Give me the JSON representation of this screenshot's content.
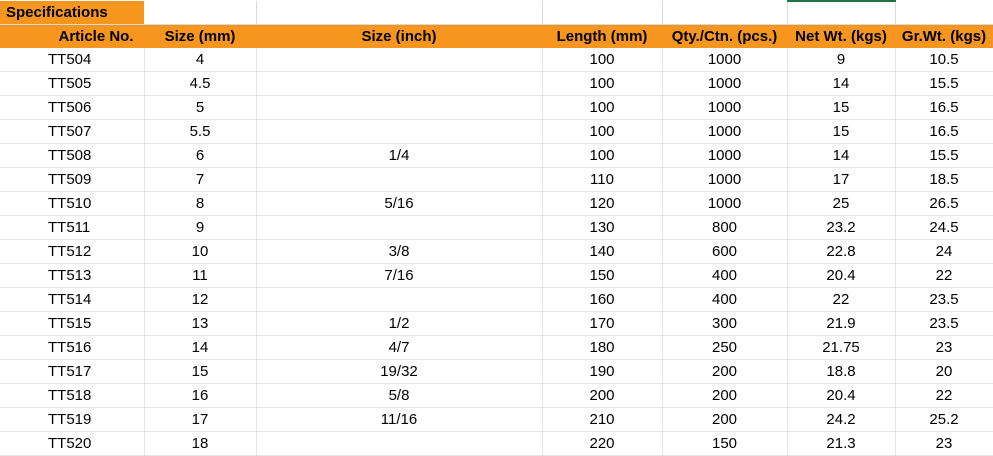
{
  "sheet": {
    "banner_label": "Specifications",
    "columns": [
      "Article No.",
      "Size (mm)",
      "Size (inch)",
      "Length (mm)",
      "Qty./Ctn. (pcs.)",
      "Net Wt. (kgs)",
      "Gr.Wt. (kgs)"
    ],
    "rows": [
      [
        "TT504",
        "4",
        "",
        "100",
        "1000",
        "9",
        "10.5"
      ],
      [
        "TT505",
        "4.5",
        "",
        "100",
        "1000",
        "14",
        "15.5"
      ],
      [
        "TT506",
        "5",
        "",
        "100",
        "1000",
        "15",
        "16.5"
      ],
      [
        "TT507",
        "5.5",
        "",
        "100",
        "1000",
        "15",
        "16.5"
      ],
      [
        "TT508",
        "6",
        "1/4",
        "100",
        "1000",
        "14",
        "15.5"
      ],
      [
        "TT509",
        "7",
        "",
        "110",
        "1000",
        "17",
        "18.5"
      ],
      [
        "TT510",
        "8",
        "5/16",
        "120",
        "1000",
        "25",
        "26.5"
      ],
      [
        "TT511",
        "9",
        "",
        "130",
        "800",
        "23.2",
        "24.5"
      ],
      [
        "TT512",
        "10",
        "3/8",
        "140",
        "600",
        "22.8",
        "24"
      ],
      [
        "TT513",
        "11",
        "7/16",
        "150",
        "400",
        "20.4",
        "22"
      ],
      [
        "TT514",
        "12",
        "",
        "160",
        "400",
        "22",
        "23.5"
      ],
      [
        "TT515",
        "13",
        "1/2",
        "170",
        "300",
        "21.9",
        "23.5"
      ],
      [
        "TT516",
        "14",
        "4/7",
        "180",
        "250",
        "21.75",
        "23"
      ],
      [
        "TT517",
        "15",
        "19/32",
        "190",
        "200",
        "18.8",
        "20"
      ],
      [
        "TT518",
        "16",
        "5/8",
        "200",
        "200",
        "20.4",
        "22"
      ],
      [
        "TT519",
        "17",
        "11/16",
        "210",
        "200",
        "24.2",
        "25.2"
      ],
      [
        "TT520",
        "18",
        "",
        "220",
        "150",
        "21.3",
        "23"
      ]
    ]
  },
  "colors": {
    "header_fill": "#f7961e",
    "grid_line": "#e4e4e4",
    "selection_accent": "#217346"
  }
}
